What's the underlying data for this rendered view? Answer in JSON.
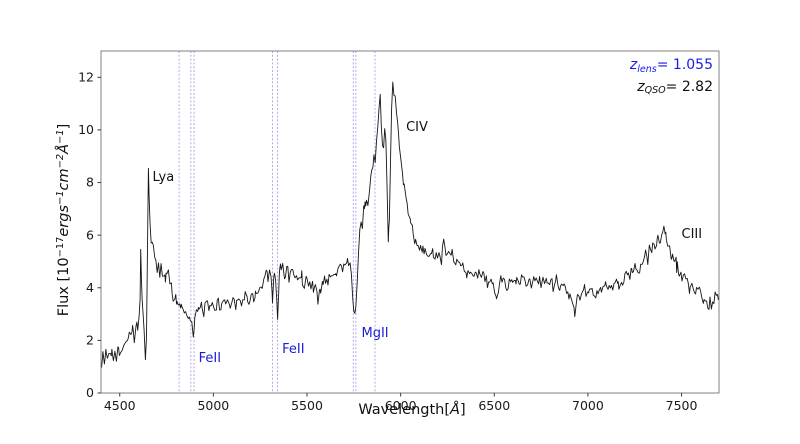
{
  "figure": {
    "background": "#ffffff",
    "plot_border_color": "#808080",
    "tick_color": "#3a3a3a",
    "tick_label_color": "#1a1a1a"
  },
  "chart_data": {
    "type": "line",
    "title": "",
    "xlabel": "Wavelength[Å]",
    "ylabel": "Flux [10−17 ergs−1 cm−2 Å−1]",
    "xlabel_parts": [
      {
        "t": "Wavelength["
      },
      {
        "t": "Å",
        "i": true
      },
      {
        "t": "]"
      }
    ],
    "ylabel_parts": [
      {
        "t": "Flux [10"
      },
      {
        "t": "−17",
        "sup": true
      },
      {
        "t": "ergs",
        "i": true
      },
      {
        "t": "−1",
        "sup": true,
        "i": true
      },
      {
        "t": "cm",
        "i": true
      },
      {
        "t": "−2",
        "sup": true,
        "i": true
      },
      {
        "t": "Å",
        "i": true
      },
      {
        "t": "−1",
        "sup": true,
        "i": true
      },
      {
        "t": "]"
      }
    ],
    "xlim": [
      4400,
      7700
    ],
    "ylim": [
      0,
      13
    ],
    "xticks": [
      4500,
      5000,
      5500,
      6000,
      6500,
      7000,
      7500
    ],
    "yticks": [
      0,
      2,
      4,
      6,
      8,
      10,
      12
    ],
    "grid": false,
    "line_color": "#161616",
    "spectrum_range": [
      4403,
      7697
    ],
    "noise": {
      "amplitude": 0.33,
      "sample_step": 6.5,
      "seed": 42
    },
    "absorption_lines": {
      "color": "#a3a3e8",
      "wavelengths": [
        4817,
        4880,
        4897,
        5316,
        5343,
        5747,
        5761,
        5863
      ]
    },
    "line_labels": [
      {
        "text": "Lya",
        "x": 4675,
        "y": 8.48,
        "color": "#111111"
      },
      {
        "text": "CIV",
        "x": 6029,
        "y": 10.38,
        "color": "#111111"
      },
      {
        "text": "CIII",
        "x": 7500,
        "y": 6.31,
        "color": "#111111"
      },
      {
        "text": "FeII",
        "x": 4921,
        "y": 1.58,
        "color": "#1c1cd8"
      },
      {
        "text": "FeII",
        "x": 5367,
        "y": 1.94,
        "color": "#1c1cd8"
      },
      {
        "text": "MgII",
        "x": 5791,
        "y": 2.53,
        "color": "#1c1cd8"
      }
    ],
    "redshift_annotations": [
      {
        "name": "zlens-annotation",
        "color": "#1a1aee",
        "parts": [
          {
            "t": "z",
            "i": true
          },
          {
            "t": "lens",
            "sub": true,
            "i": true
          },
          {
            "t": "= 1.055"
          }
        ]
      },
      {
        "name": "zqso-annotation",
        "color": "#111111",
        "parts": [
          {
            "t": "z",
            "i": true
          },
          {
            "t": "QSO",
            "sub": true,
            "i": true
          },
          {
            "t": "= 2.82"
          }
        ]
      }
    ],
    "spectrum_anchors": [
      [
        4403,
        0.95
      ],
      [
        4410,
        1.4
      ],
      [
        4418,
        1.2
      ],
      [
        4426,
        1.55
      ],
      [
        4434,
        1.3
      ],
      [
        4442,
        1.6
      ],
      [
        4450,
        1.4
      ],
      [
        4458,
        1.7
      ],
      [
        4466,
        1.45
      ],
      [
        4474,
        1.6
      ],
      [
        4482,
        1.35
      ],
      [
        4490,
        1.75
      ],
      [
        4498,
        1.5
      ],
      [
        4506,
        1.85
      ],
      [
        4515,
        1.6
      ],
      [
        4524,
        2.0
      ],
      [
        4533,
        1.75
      ],
      [
        4542,
        2.1
      ],
      [
        4551,
        2.4
      ],
      [
        4560,
        2.1
      ],
      [
        4569,
        2.45
      ],
      [
        4578,
        2.2
      ],
      [
        4587,
        2.6
      ],
      [
        4596,
        2.45
      ],
      [
        4604,
        2.9
      ],
      [
        4609,
        3.6
      ],
      [
        4612,
        5.35
      ],
      [
        4616,
        4.2
      ],
      [
        4620,
        3.35
      ],
      [
        4625,
        3.0
      ],
      [
        4630,
        2.4
      ],
      [
        4637,
        1.25
      ],
      [
        4643,
        2.2
      ],
      [
        4648,
        5.0
      ],
      [
        4653,
        8.25
      ],
      [
        4657,
        7.5
      ],
      [
        4662,
        6.6
      ],
      [
        4668,
        5.7
      ],
      [
        4674,
        5.5
      ],
      [
        4680,
        5.75
      ],
      [
        4686,
        5.2
      ],
      [
        4693,
        4.9
      ],
      [
        4700,
        4.7
      ],
      [
        4707,
        5.0
      ],
      [
        4714,
        4.55
      ],
      [
        4721,
        4.75
      ],
      [
        4728,
        4.4
      ],
      [
        4736,
        4.6
      ],
      [
        4744,
        4.3
      ],
      [
        4752,
        4.5
      ],
      [
        4760,
        4.65
      ],
      [
        4768,
        4.4
      ],
      [
        4776,
        4.05
      ],
      [
        4785,
        3.7
      ],
      [
        4794,
        3.5
      ],
      [
        4803,
        3.6
      ],
      [
        4812,
        3.4
      ],
      [
        4820,
        3.35
      ],
      [
        4829,
        3.3
      ],
      [
        4838,
        3.15
      ],
      [
        4848,
        3.2
      ],
      [
        4858,
        3.0
      ],
      [
        4868,
        3.05
      ],
      [
        4877,
        2.8
      ],
      [
        4885,
        2.5
      ],
      [
        4893,
        2.05
      ],
      [
        4901,
        2.75
      ],
      [
        4910,
        3.05
      ],
      [
        4920,
        3.25
      ],
      [
        4930,
        3.1
      ],
      [
        4940,
        3.3
      ],
      [
        4952,
        3.1
      ],
      [
        4964,
        3.35
      ],
      [
        4976,
        3.15
      ],
      [
        4988,
        3.3
      ],
      [
        5002,
        3.2
      ],
      [
        5016,
        3.45
      ],
      [
        5030,
        3.3
      ],
      [
        5045,
        3.5
      ],
      [
        5060,
        3.35
      ],
      [
        5075,
        3.55
      ],
      [
        5090,
        3.4
      ],
      [
        5105,
        3.6
      ],
      [
        5120,
        3.45
      ],
      [
        5135,
        3.6
      ],
      [
        5150,
        3.5
      ],
      [
        5165,
        3.65
      ],
      [
        5180,
        3.55
      ],
      [
        5195,
        3.7
      ],
      [
        5210,
        3.6
      ],
      [
        5225,
        3.75
      ],
      [
        5240,
        3.7
      ],
      [
        5255,
        3.9
      ],
      [
        5270,
        4.25
      ],
      [
        5282,
        4.5
      ],
      [
        5292,
        4.25
      ],
      [
        5300,
        4.5
      ],
      [
        5308,
        4.35
      ],
      [
        5316,
        3.5
      ],
      [
        5322,
        4.25
      ],
      [
        5329,
        4.5
      ],
      [
        5336,
        3.9
      ],
      [
        5343,
        2.65
      ],
      [
        5349,
        3.8
      ],
      [
        5355,
        4.9
      ],
      [
        5362,
        4.65
      ],
      [
        5370,
        4.85
      ],
      [
        5380,
        4.6
      ],
      [
        5392,
        4.75
      ],
      [
        5404,
        4.5
      ],
      [
        5416,
        4.65
      ],
      [
        5430,
        4.4
      ],
      [
        5444,
        4.55
      ],
      [
        5458,
        4.3
      ],
      [
        5472,
        4.45
      ],
      [
        5486,
        4.15
      ],
      [
        5500,
        4.3
      ],
      [
        5515,
        4.05
      ],
      [
        5530,
        4.15
      ],
      [
        5545,
        3.9
      ],
      [
        5558,
        3.6
      ],
      [
        5570,
        3.95
      ],
      [
        5582,
        4.15
      ],
      [
        5594,
        4.3
      ],
      [
        5606,
        4.15
      ],
      [
        5618,
        4.5
      ],
      [
        5630,
        4.35
      ],
      [
        5642,
        4.6
      ],
      [
        5654,
        4.5
      ],
      [
        5666,
        4.7
      ],
      [
        5678,
        4.85
      ],
      [
        5690,
        4.7
      ],
      [
        5702,
        4.95
      ],
      [
        5712,
        5.1
      ],
      [
        5722,
        4.95
      ],
      [
        5730,
        5.1
      ],
      [
        5737,
        4.6
      ],
      [
        5744,
        3.4
      ],
      [
        5750,
        2.95
      ],
      [
        5756,
        3.15
      ],
      [
        5761,
        3.3
      ],
      [
        5768,
        4.2
      ],
      [
        5775,
        5.3
      ],
      [
        5782,
        6.3
      ],
      [
        5789,
        6.6
      ],
      [
        5796,
        6.4
      ],
      [
        5803,
        6.9
      ],
      [
        5810,
        7.15
      ],
      [
        5818,
        7.35
      ],
      [
        5825,
        7.05
      ],
      [
        5833,
        7.7
      ],
      [
        5841,
        8.1
      ],
      [
        5849,
        8.55
      ],
      [
        5857,
        9.0
      ],
      [
        5864,
        8.7
      ],
      [
        5871,
        9.4
      ],
      [
        5878,
        9.8
      ],
      [
        5885,
        10.6
      ],
      [
        5891,
        11.1
      ],
      [
        5897,
        10.4
      ],
      [
        5903,
        9.4
      ],
      [
        5909,
        9.2
      ],
      [
        5915,
        9.9
      ],
      [
        5921,
        9.6
      ],
      [
        5928,
        7.6
      ],
      [
        5934,
        5.9
      ],
      [
        5940,
        6.8
      ],
      [
        5946,
        8.8
      ],
      [
        5952,
        10.6
      ],
      [
        5958,
        11.75
      ],
      [
        5964,
        11.4
      ],
      [
        5971,
        11.1
      ],
      [
        5978,
        10.7
      ],
      [
        5985,
        10.1
      ],
      [
        5993,
        9.4
      ],
      [
        6001,
        8.9
      ],
      [
        6010,
        8.3
      ],
      [
        6019,
        7.8
      ],
      [
        6029,
        7.4
      ],
      [
        6040,
        6.9
      ],
      [
        6051,
        6.5
      ],
      [
        6063,
        6.2
      ],
      [
        6075,
        5.95
      ],
      [
        6088,
        5.75
      ],
      [
        6101,
        5.55
      ],
      [
        6115,
        5.5
      ],
      [
        6130,
        5.35
      ],
      [
        6145,
        5.2
      ],
      [
        6160,
        5.35
      ],
      [
        6175,
        5.15
      ],
      [
        6190,
        5.05
      ],
      [
        6205,
        5.2
      ],
      [
        6218,
        5.05
      ],
      [
        6230,
        5.85
      ],
      [
        6242,
        5.15
      ],
      [
        6256,
        5.3
      ],
      [
        6270,
        5.4
      ],
      [
        6284,
        5.05
      ],
      [
        6300,
        4.9
      ],
      [
        6316,
        4.8
      ],
      [
        6332,
        4.85
      ],
      [
        6350,
        4.65
      ],
      [
        6368,
        4.7
      ],
      [
        6386,
        4.5
      ],
      [
        6404,
        4.6
      ],
      [
        6422,
        4.4
      ],
      [
        6440,
        4.5
      ],
      [
        6458,
        4.3
      ],
      [
        6476,
        4.2
      ],
      [
        6494,
        4.05
      ],
      [
        6512,
        3.55
      ],
      [
        6528,
        4.15
      ],
      [
        6545,
        4.3
      ],
      [
        6562,
        4.1
      ],
      [
        6580,
        4.3
      ],
      [
        6598,
        4.15
      ],
      [
        6616,
        4.35
      ],
      [
        6634,
        4.2
      ],
      [
        6652,
        4.4
      ],
      [
        6670,
        4.25
      ],
      [
        6688,
        4.35
      ],
      [
        6706,
        4.1
      ],
      [
        6724,
        4.3
      ],
      [
        6742,
        4.15
      ],
      [
        6760,
        4.3
      ],
      [
        6778,
        4.2
      ],
      [
        6796,
        4.3
      ],
      [
        6814,
        4.1
      ],
      [
        6832,
        4.2
      ],
      [
        6850,
        4.0
      ],
      [
        6868,
        4.1
      ],
      [
        6886,
        3.9
      ],
      [
        6904,
        3.7
      ],
      [
        6920,
        3.45
      ],
      [
        6930,
        3.0
      ],
      [
        6940,
        3.45
      ],
      [
        6952,
        3.6
      ],
      [
        6966,
        3.75
      ],
      [
        6982,
        3.85
      ],
      [
        7000,
        3.75
      ],
      [
        7018,
        3.95
      ],
      [
        7036,
        3.8
      ],
      [
        7054,
        4.0
      ],
      [
        7072,
        3.9
      ],
      [
        7090,
        4.05
      ],
      [
        7108,
        3.95
      ],
      [
        7126,
        4.1
      ],
      [
        7144,
        4.0
      ],
      [
        7162,
        4.15
      ],
      [
        7180,
        4.25
      ],
      [
        7198,
        4.4
      ],
      [
        7216,
        4.5
      ],
      [
        7234,
        4.6
      ],
      [
        7252,
        4.7
      ],
      [
        7268,
        4.45
      ],
      [
        7282,
        4.7
      ],
      [
        7295,
        5.0
      ],
      [
        7308,
        5.35
      ],
      [
        7320,
        5.1
      ],
      [
        7333,
        5.45
      ],
      [
        7346,
        5.65
      ],
      [
        7358,
        5.5
      ],
      [
        7370,
        5.85
      ],
      [
        7382,
        5.65
      ],
      [
        7394,
        6.0
      ],
      [
        7406,
        6.35
      ],
      [
        7416,
        5.95
      ],
      [
        7426,
        5.75
      ],
      [
        7436,
        5.5
      ],
      [
        7448,
        5.25
      ],
      [
        7460,
        5.05
      ],
      [
        7474,
        4.85
      ],
      [
        7488,
        4.6
      ],
      [
        7502,
        4.45
      ],
      [
        7516,
        4.3
      ],
      [
        7530,
        4.15
      ],
      [
        7546,
        4.0
      ],
      [
        7562,
        3.9
      ],
      [
        7580,
        3.8
      ],
      [
        7598,
        3.75
      ],
      [
        7616,
        3.6
      ],
      [
        7634,
        3.5
      ],
      [
        7652,
        3.35
      ],
      [
        7666,
        3.25
      ],
      [
        7676,
        3.7
      ],
      [
        7686,
        3.5
      ],
      [
        7697,
        3.7
      ]
    ]
  }
}
